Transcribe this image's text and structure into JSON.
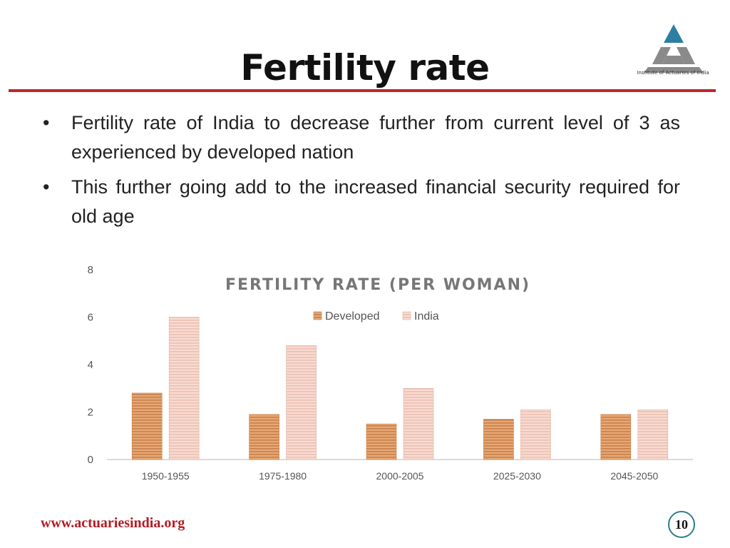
{
  "slide": {
    "title": "Fertility rate",
    "logo_text": "Institute of Actuaries of India",
    "bullets": [
      "Fertility rate of India to decrease further from current level of 3 as experienced by developed nation",
      "This further going add to the increased financial security required for old age"
    ],
    "bullet_symbol": "•",
    "footer_url": "www.actuariesindia.org",
    "page_number": "10",
    "colors": {
      "accent_red": "#c0262d",
      "logo_blue": "#2b7fa3",
      "logo_grey": "#8a8a8a",
      "developed": "#e0a06a",
      "india": "#f4cfc4"
    }
  },
  "chart_data": {
    "type": "bar",
    "title": "FERTILITY RATE (PER WOMAN)",
    "categories": [
      "1950-1955",
      "1975-1980",
      "2000-2005",
      "2025-2030",
      "2045-2050"
    ],
    "series": [
      {
        "name": "Developed",
        "values": [
          2.8,
          1.9,
          1.5,
          1.7,
          1.9
        ]
      },
      {
        "name": "India",
        "values": [
          6.0,
          4.8,
          3.0,
          2.1,
          2.1
        ]
      }
    ],
    "yticks": [
      "0",
      "2",
      "4",
      "6",
      "8"
    ],
    "ylim": [
      0,
      8
    ],
    "legend": "top-center",
    "grid": false
  }
}
